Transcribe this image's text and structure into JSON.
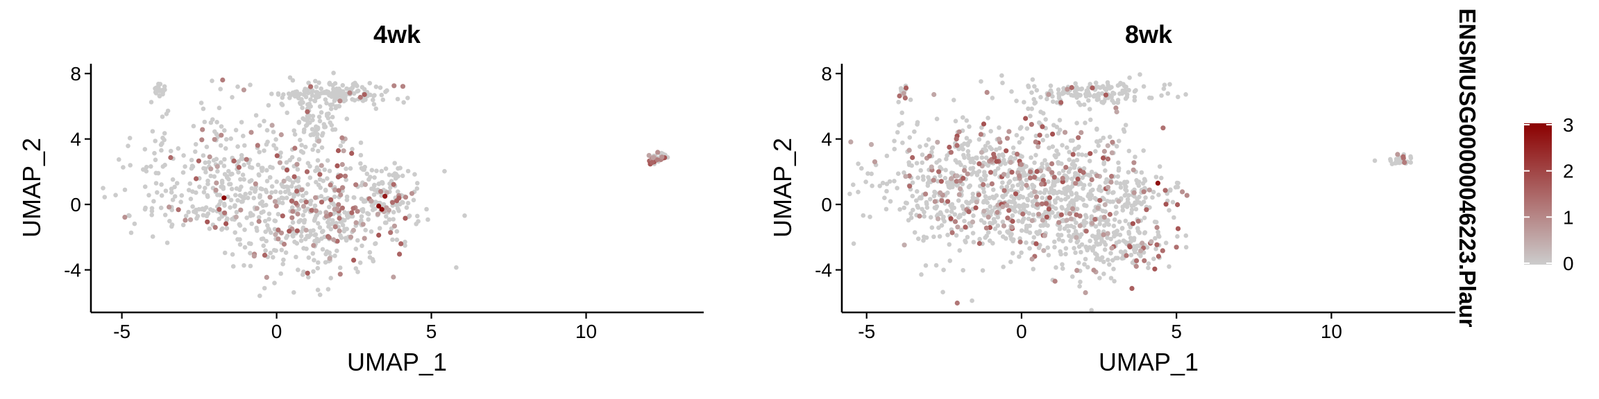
{
  "chart_data": [
    {
      "type": "scatter",
      "title": "4wk",
      "xlabel": "UMAP_1",
      "ylabel": "UMAP_2",
      "xlim": [
        -6.0,
        13.8
      ],
      "ylim": [
        -6.6,
        8.6
      ],
      "xticks": [
        -5,
        0,
        5,
        10
      ],
      "yticks": [
        -4,
        0,
        4,
        8
      ],
      "xtick_labels": [
        "-5",
        "0",
        "5",
        "10"
      ],
      "ytick_labels": [
        "-4",
        "0",
        "4",
        "8"
      ],
      "low_color": "#cccccc",
      "high_color": "#8b0000",
      "clusters": [
        {
          "cx": -3.8,
          "cy": 7.0,
          "sx": 0.08,
          "sy": 0.18,
          "n": 18,
          "expr_rate": 0.0
        },
        {
          "cx": 1.9,
          "cy": 6.8,
          "sx": 0.9,
          "sy": 0.35,
          "n": 160,
          "expr_rate": 0.03
        },
        {
          "cx": 1.3,
          "cy": 5.3,
          "sx": 0.45,
          "sy": 0.9,
          "n": 70,
          "expr_rate": 0.03
        },
        {
          "cx": -1.6,
          "cy": 1.4,
          "sx": 1.6,
          "sy": 2.1,
          "n": 380,
          "expr_rate": 0.1
        },
        {
          "cx": 1.4,
          "cy": -0.4,
          "sx": 1.3,
          "sy": 2.0,
          "n": 420,
          "expr_rate": 0.24
        },
        {
          "cx": 3.6,
          "cy": 0.4,
          "sx": 0.55,
          "sy": 0.8,
          "n": 90,
          "expr_rate": 0.1
        },
        {
          "cx": 12.3,
          "cy": 2.8,
          "sx": 0.15,
          "sy": 0.18,
          "n": 30,
          "expr_rate": 0.45
        }
      ],
      "highlight_points": [
        {
          "x": -1.7,
          "y": 0.4,
          "value": 3.0
        },
        {
          "x": 3.3,
          "y": -0.1,
          "value": 3.0
        },
        {
          "x": 3.4,
          "y": -0.3,
          "value": 2.8
        },
        {
          "x": 3.5,
          "y": 0.5,
          "value": 2.6
        },
        {
          "x": 1.1,
          "y": 7.2,
          "value": 1.4
        },
        {
          "x": 1.0,
          "y": -4.2,
          "value": 1.6
        }
      ]
    },
    {
      "type": "scatter",
      "title": "8wk",
      "xlabel": "UMAP_1",
      "ylabel": "UMAP_2",
      "xlim": [
        -5.8,
        14.0
      ],
      "ylim": [
        -6.6,
        8.6
      ],
      "xticks": [
        -5,
        0,
        5,
        10
      ],
      "yticks": [
        -4,
        0,
        4,
        8
      ],
      "xtick_labels": [
        "-5",
        "0",
        "5",
        "10"
      ],
      "ytick_labels": [
        "-4",
        "0",
        "4",
        "8"
      ],
      "low_color": "#cccccc",
      "high_color": "#8b0000",
      "clusters": [
        {
          "cx": -3.8,
          "cy": 6.9,
          "sx": 0.08,
          "sy": 0.2,
          "n": 14,
          "expr_rate": 0.2
        },
        {
          "cx": 2.3,
          "cy": 6.8,
          "sx": 1.1,
          "sy": 0.35,
          "n": 150,
          "expr_rate": 0.06
        },
        {
          "cx": -1.6,
          "cy": 1.0,
          "sx": 1.6,
          "sy": 2.1,
          "n": 520,
          "expr_rate": 0.16
        },
        {
          "cx": 1.2,
          "cy": 0.6,
          "sx": 1.3,
          "sy": 2.3,
          "n": 560,
          "expr_rate": 0.18
        },
        {
          "cx": 3.3,
          "cy": -2.3,
          "sx": 0.9,
          "sy": 0.9,
          "n": 170,
          "expr_rate": 0.22
        },
        {
          "cx": 3.7,
          "cy": 0.7,
          "sx": 0.6,
          "sy": 0.6,
          "n": 80,
          "expr_rate": 0.1
        },
        {
          "cx": 12.2,
          "cy": 2.7,
          "sx": 0.18,
          "sy": 0.16,
          "n": 28,
          "expr_rate": 0.1
        }
      ],
      "highlight_points": [
        {
          "x": 4.4,
          "y": 1.3,
          "value": 2.8
        },
        {
          "x": 1.0,
          "y": 4.3,
          "value": 1.8
        },
        {
          "x": 3.5,
          "y": -2.6,
          "value": 1.7
        },
        {
          "x": -2.1,
          "y": 4.0,
          "value": 1.4
        }
      ]
    }
  ],
  "legend": {
    "title": "ENSMUSG00000046223.Plaur",
    "ticks": [
      0,
      1,
      2,
      3
    ],
    "tick_labels": [
      "0",
      "1",
      "2",
      "3"
    ],
    "range": [
      0,
      3
    ],
    "low_color": "#cccccc",
    "high_color": "#8b0000"
  }
}
